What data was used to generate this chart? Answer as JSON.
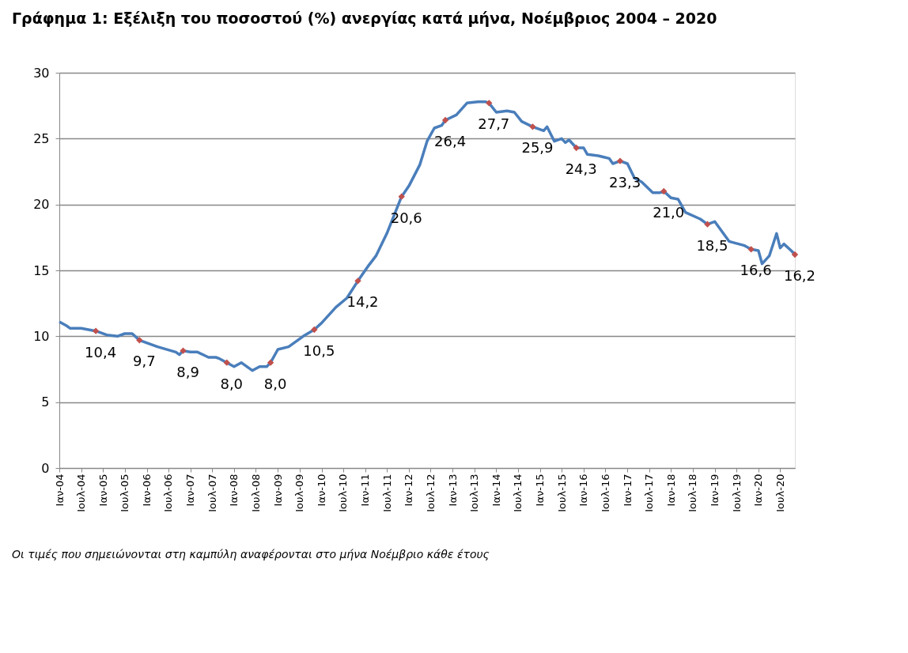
{
  "chart_data": {
    "type": "line",
    "title": "Γράφημα 1: Εξέλιξη του ποσοστού (%) ανεργίας κατά μήνα, Νοέμβριος 2004 – 2020",
    "annotations": [
      "Οι τιμές που σημειώνονται στη καμπύλη αναφέρονται στο μήνα Νοέμβριο κάθε έτους"
    ],
    "xlim": [
      "2004-01",
      "2020-11"
    ],
    "xticks": [
      {
        "value": "2004-01",
        "label": "Ιαν-04"
      },
      {
        "value": "2004-07",
        "label": "Ιουλ-04"
      },
      {
        "value": "2005-01",
        "label": "Ιαν-05"
      },
      {
        "value": "2005-07",
        "label": "Ιουλ-05"
      },
      {
        "value": "2006-01",
        "label": "Ιαν-06"
      },
      {
        "value": "2006-07",
        "label": "Ιουλ-06"
      },
      {
        "value": "2007-01",
        "label": "Ιαν-07"
      },
      {
        "value": "2007-07",
        "label": "Ιουλ-07"
      },
      {
        "value": "2008-01",
        "label": "Ιαν-08"
      },
      {
        "value": "2008-07",
        "label": "Ιουλ-08"
      },
      {
        "value": "2009-01",
        "label": "Ιαν-09"
      },
      {
        "value": "2009-07",
        "label": "Ιουλ-09"
      },
      {
        "value": "2010-01",
        "label": "Ιαν-10"
      },
      {
        "value": "2010-07",
        "label": "Ιουλ-10"
      },
      {
        "value": "2011-01",
        "label": "Ιαν-11"
      },
      {
        "value": "2011-07",
        "label": "Ιουλ-11"
      },
      {
        "value": "2012-01",
        "label": "Ιαν-12"
      },
      {
        "value": "2012-07",
        "label": "Ιουλ-12"
      },
      {
        "value": "2013-01",
        "label": "Ιαν-13"
      },
      {
        "value": "2013-07",
        "label": "Ιουλ-13"
      },
      {
        "value": "2014-01",
        "label": "Ιαν-14"
      },
      {
        "value": "2014-07",
        "label": "Ιουλ-14"
      },
      {
        "value": "2015-01",
        "label": "Ιαν-15"
      },
      {
        "value": "2015-07",
        "label": "Ιουλ-15"
      },
      {
        "value": "2016-01",
        "label": "Ιαν-16"
      },
      {
        "value": "2016-07",
        "label": "Ιουλ-16"
      },
      {
        "value": "2017-01",
        "label": "Ιαν-17"
      },
      {
        "value": "2017-07",
        "label": "Ιουλ-17"
      },
      {
        "value": "2018-01",
        "label": "Ιαν-18"
      },
      {
        "value": "2018-07",
        "label": "Ιουλ-18"
      },
      {
        "value": "2019-01",
        "label": "Ιαν-19"
      },
      {
        "value": "2019-07",
        "label": "Ιουλ-19"
      },
      {
        "value": "2020-01",
        "label": "Ιαν-20"
      },
      {
        "value": "2020-07",
        "label": "Ιουλ-20"
      }
    ],
    "ylim": [
      0,
      30
    ],
    "yticks": [
      0,
      5,
      10,
      15,
      20,
      25,
      30
    ],
    "grid": "y",
    "series": [
      {
        "type": "line",
        "line_style": "solid",
        "color": "#4a7ebb",
        "x": [
          "2004-01",
          "2004-03",
          "2004-04",
          "2004-07",
          "2004-11",
          "2005-02",
          "2005-05",
          "2005-07",
          "2005-09",
          "2005-11",
          "2006-04",
          "2006-09",
          "2006-10",
          "2006-11",
          "2007-01",
          "2007-03",
          "2007-06",
          "2007-08",
          "2007-09",
          "2007-11",
          "2008-01",
          "2008-03",
          "2008-06",
          "2008-08",
          "2008-10",
          "2008-11",
          "2009-01",
          "2009-04",
          "2009-08",
          "2009-11",
          "2010-01",
          "2010-05",
          "2010-08",
          "2010-11",
          "2011-02",
          "2011-04",
          "2011-07",
          "2011-10",
          "2011-11",
          "2012-01",
          "2012-04",
          "2012-06",
          "2012-08",
          "2012-10",
          "2012-11",
          "2013-02",
          "2013-05",
          "2013-08",
          "2013-10",
          "2013-11",
          "2014-01",
          "2014-04",
          "2014-06",
          "2014-08",
          "2014-11",
          "2015-02",
          "2015-03",
          "2015-05",
          "2015-07",
          "2015-08",
          "2015-09",
          "2015-11",
          "2016-01",
          "2016-02",
          "2016-05",
          "2016-08",
          "2016-09",
          "2016-11",
          "2017-01",
          "2017-03",
          "2017-05",
          "2017-08",
          "2017-10",
          "2017-11",
          "2018-01",
          "2018-03",
          "2018-05",
          "2018-09",
          "2018-11",
          "2019-01",
          "2019-05",
          "2019-09",
          "2019-11",
          "2020-01",
          "2020-02",
          "2020-04",
          "2020-06",
          "2020-07",
          "2020-08",
          "2020-10",
          "2020-11"
        ],
        "values": [
          11.1,
          10.8,
          10.6,
          10.6,
          10.4,
          10.1,
          10.0,
          10.2,
          10.2,
          9.7,
          9.2,
          8.8,
          8.6,
          8.9,
          8.8,
          8.8,
          8.4,
          8.4,
          8.3,
          8.0,
          7.7,
          8.0,
          7.4,
          7.7,
          7.7,
          8.0,
          9.0,
          9.2,
          10.0,
          10.5,
          11.0,
          12.2,
          12.9,
          14.2,
          15.4,
          16.1,
          17.8,
          19.9,
          20.6,
          21.4,
          23.0,
          24.8,
          25.8,
          26.0,
          26.4,
          26.8,
          27.7,
          27.8,
          27.8,
          27.7,
          27.0,
          27.1,
          27.0,
          26.3,
          25.9,
          25.6,
          25.9,
          24.8,
          25.0,
          24.7,
          24.9,
          24.3,
          24.3,
          23.8,
          23.7,
          23.5,
          23.1,
          23.3,
          23.1,
          22.0,
          21.7,
          20.9,
          20.9,
          21.0,
          20.5,
          20.4,
          19.4,
          18.9,
          18.5,
          18.7,
          17.2,
          16.9,
          16.6,
          16.5,
          15.5,
          16.1,
          17.8,
          16.7,
          17.0,
          16.5,
          16.2
        ]
      },
      {
        "type": "scatter",
        "color": "#c0504d",
        "marker": "diamond",
        "x": [
          "2004-11",
          "2005-11",
          "2006-11",
          "2007-11",
          "2008-11",
          "2009-11",
          "2010-11",
          "2011-11",
          "2012-11",
          "2013-11",
          "2014-11",
          "2015-11",
          "2016-11",
          "2017-11",
          "2018-11",
          "2019-11",
          "2020-11"
        ],
        "values": [
          10.4,
          9.7,
          8.9,
          8.0,
          8.0,
          10.5,
          14.2,
          20.6,
          26.4,
          27.7,
          25.9,
          24.3,
          23.3,
          21.0,
          18.5,
          16.6,
          16.2
        ],
        "value_labels": [
          "10,4",
          "9,7",
          "8,9",
          "8,0",
          "8,0",
          "10,5",
          "14,2",
          "20,6",
          "26,4",
          "27,7",
          "25,9",
          "24,3",
          "23,3",
          "21,0",
          "18,5",
          "16,6",
          "16,2"
        ]
      }
    ]
  }
}
